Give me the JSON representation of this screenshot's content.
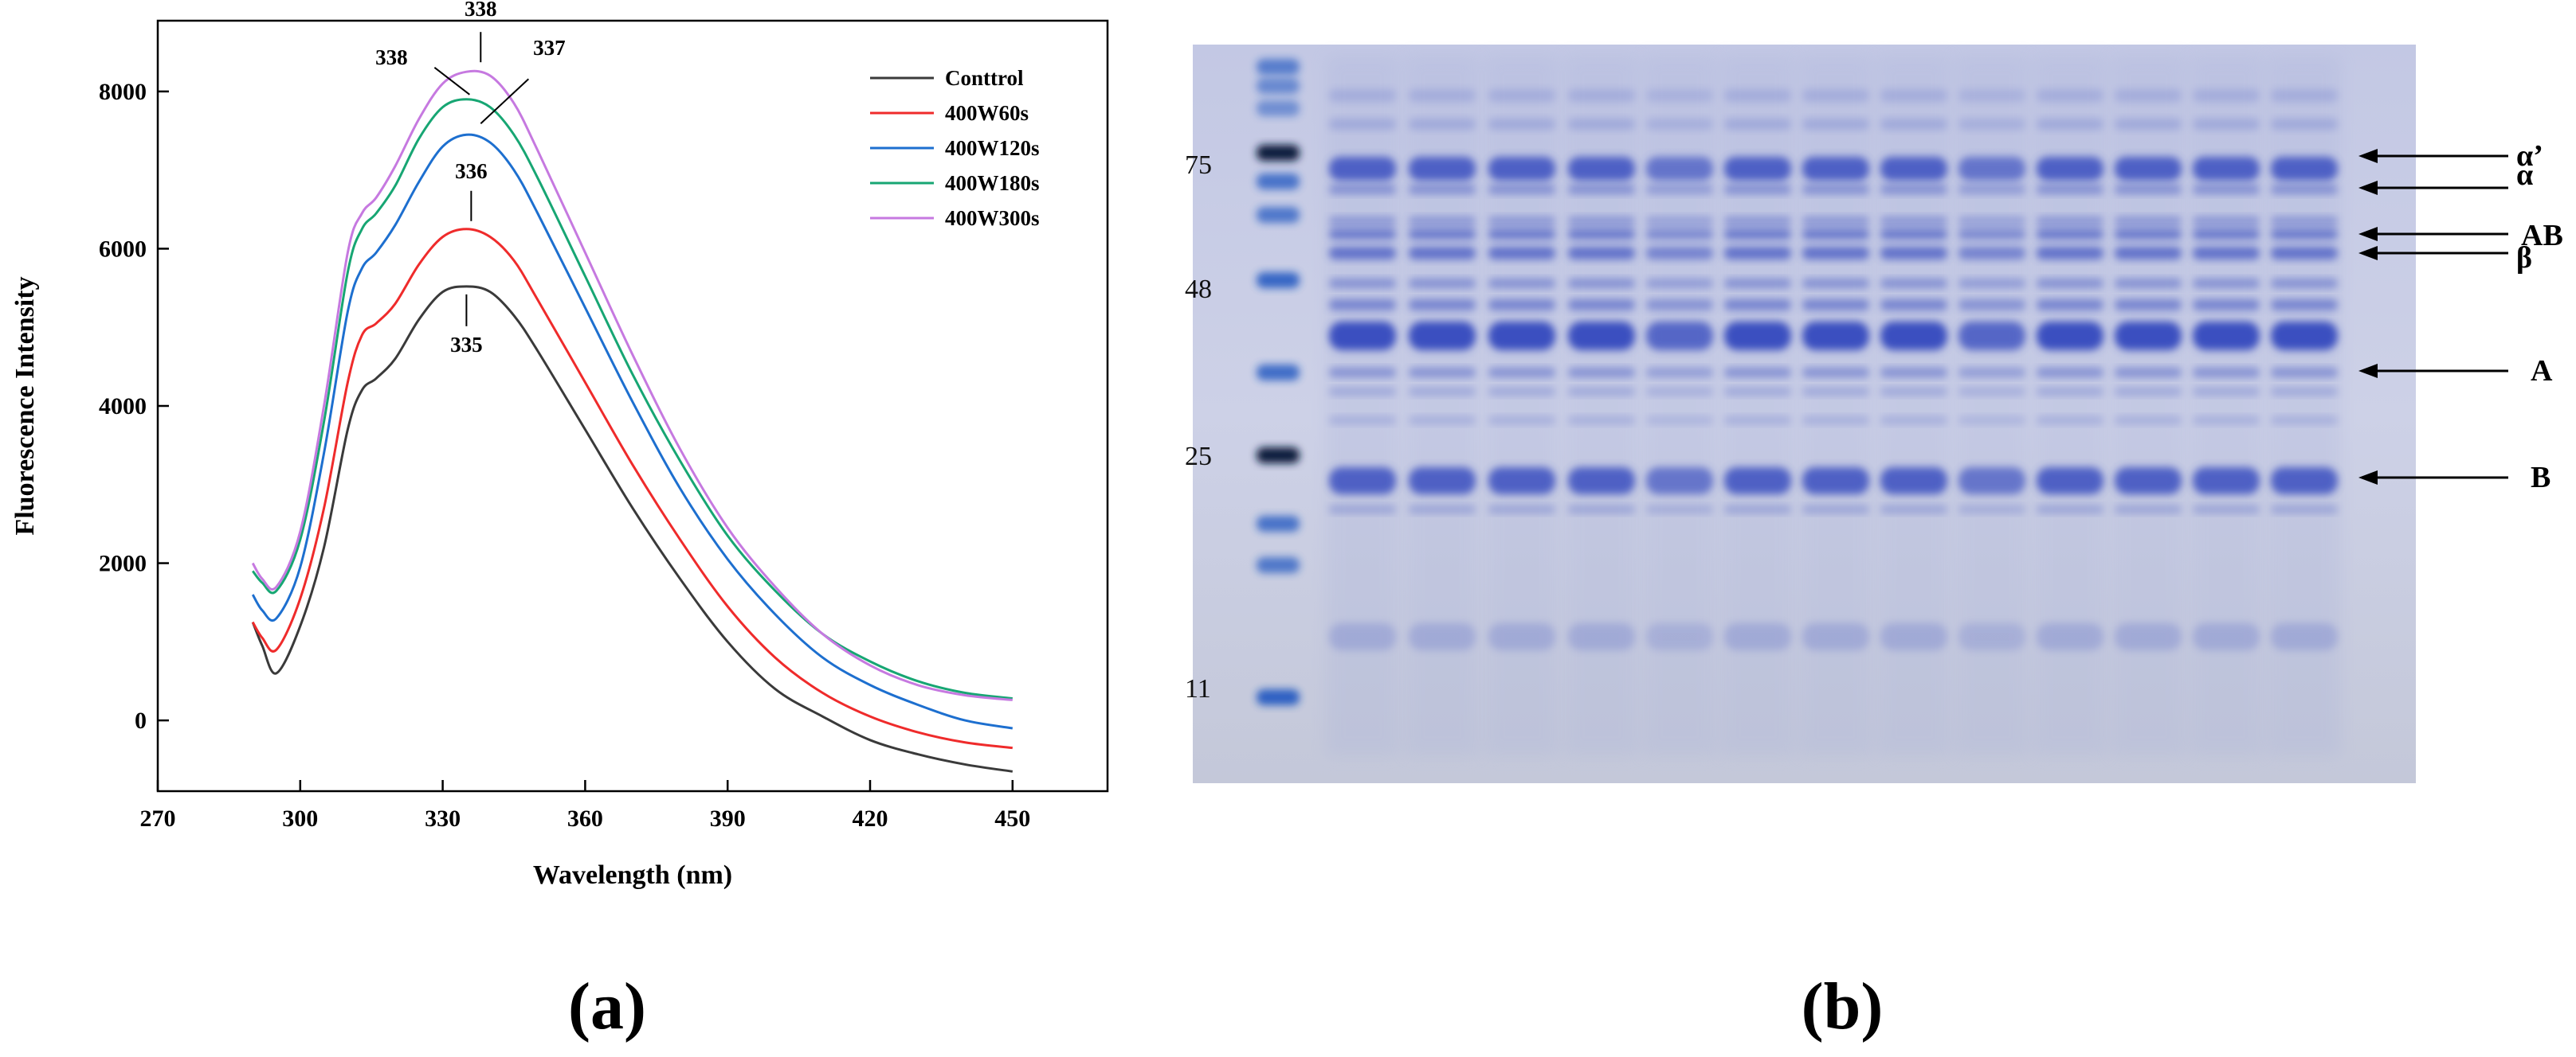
{
  "panel_a_label": "(a)",
  "panel_b_label": "(b)",
  "chart_data": [
    {
      "type": "line",
      "xlabel": "Wavelength (nm)",
      "ylabel": "Fluorescence Intensity",
      "xlim": [
        270,
        470
      ],
      "ylim": [
        -900,
        8900
      ],
      "xticks": [
        270,
        300,
        330,
        360,
        390,
        420,
        450
      ],
      "yticks": [
        0,
        2000,
        4000,
        6000,
        8000
      ],
      "legend_position": "top-right",
      "x": [
        290,
        292,
        295,
        300,
        305,
        310,
        313,
        316,
        320,
        325,
        330,
        335,
        340,
        345,
        350,
        360,
        370,
        380,
        390,
        400,
        410,
        420,
        430,
        440,
        450
      ],
      "series": [
        {
          "name": "Conttrol",
          "color": "#3a3a3a",
          "values": [
            1250,
            950,
            600,
            1200,
            2200,
            3700,
            4200,
            4350,
            4600,
            5100,
            5450,
            5520,
            5450,
            5150,
            4700,
            3700,
            2700,
            1800,
            1000,
            400,
            50,
            -250,
            -430,
            -560,
            -650
          ]
        },
        {
          "name": "400W60s",
          "color": "#ef2b2b",
          "values": [
            1250,
            1050,
            900,
            1550,
            2700,
            4300,
            4900,
            5050,
            5300,
            5800,
            6150,
            6250,
            6150,
            5850,
            5350,
            4300,
            3250,
            2300,
            1450,
            800,
            350,
            50,
            -150,
            -280,
            -350
          ]
        },
        {
          "name": "400W120s",
          "color": "#1d6fcf",
          "values": [
            1600,
            1400,
            1300,
            1950,
            3400,
            5200,
            5750,
            5950,
            6300,
            6850,
            7300,
            7450,
            7350,
            7000,
            6450,
            5250,
            4050,
            2950,
            2050,
            1350,
            800,
            450,
            200,
            0,
            -100
          ]
        },
        {
          "name": "400W180s",
          "color": "#17a673",
          "values": [
            1900,
            1750,
            1650,
            2300,
            3800,
            5700,
            6250,
            6450,
            6800,
            7400,
            7800,
            7900,
            7800,
            7450,
            6900,
            5650,
            4400,
            3300,
            2350,
            1650,
            1100,
            750,
            500,
            350,
            280
          ]
        },
        {
          "name": "400W300s",
          "color": "#c679e0",
          "values": [
            2000,
            1800,
            1700,
            2400,
            4000,
            5950,
            6450,
            6650,
            7050,
            7650,
            8100,
            8250,
            8200,
            7850,
            7250,
            5950,
            4650,
            3450,
            2450,
            1700,
            1100,
            700,
            450,
            320,
            260
          ]
        }
      ],
      "annotations": [
        {
          "text": "338",
          "x": 338,
          "y": 8250
        },
        {
          "text": "338",
          "x": 336,
          "y": 7900
        },
        {
          "text": "337",
          "x": 337,
          "y": 7450
        },
        {
          "text": "336",
          "x": 336,
          "y": 6250
        },
        {
          "text": "335",
          "x": 335,
          "y": 5520
        }
      ]
    }
  ],
  "gel": {
    "marker_labels": [
      "75",
      "48",
      "25",
      "11"
    ],
    "band_labels": [
      "α’",
      "α",
      "AB",
      "β",
      "A",
      "B"
    ],
    "background_color": "#c4c9e2",
    "band_color": "#3a4fc0"
  }
}
